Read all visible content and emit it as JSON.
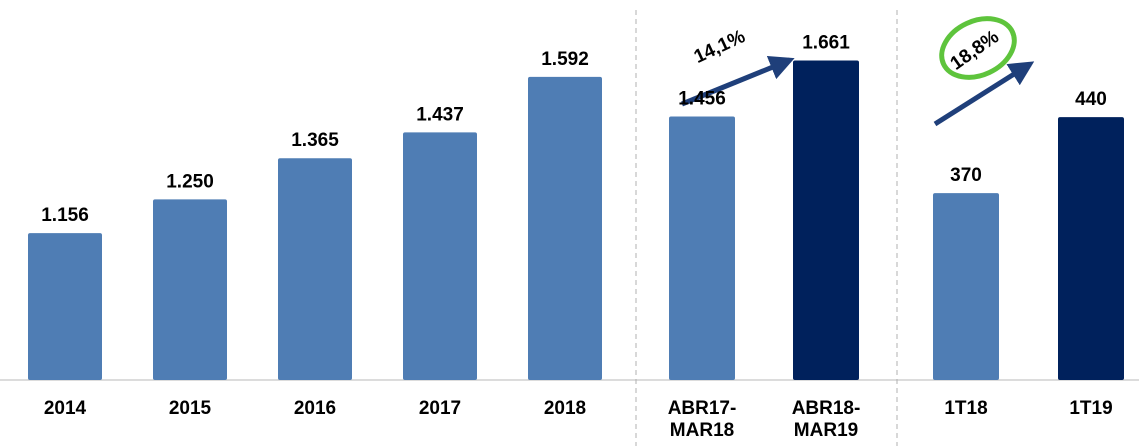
{
  "chart_data": [
    {
      "type": "bar",
      "categories": [
        "2014",
        "2015",
        "2016",
        "2017",
        "2018"
      ],
      "values": [
        1156,
        1250,
        1365,
        1437,
        1592
      ],
      "value_labels": [
        "1.156",
        "1.250",
        "1.365",
        "1.437",
        "1.592"
      ],
      "colors": [
        "#4f7db4",
        "#4f7db4",
        "#4f7db4",
        "#4f7db4",
        "#4f7db4"
      ],
      "ylim": [
        746,
        1695
      ]
    },
    {
      "type": "bar",
      "categories": [
        "ABR17-MAR18",
        "ABR18-MAR19"
      ],
      "values": [
        1456,
        1661
      ],
      "value_labels": [
        "1.456",
        "1.661"
      ],
      "colors": [
        "#4f7db4",
        "#00215c"
      ],
      "ylim": [
        491,
        1736
      ],
      "annotation": "14,1%"
    },
    {
      "type": "bar",
      "categories": [
        "1T18",
        "1T19"
      ],
      "values": [
        370,
        440
      ],
      "value_labels": [
        "370",
        "440"
      ],
      "colors": [
        "#4f7db4",
        "#00215c"
      ],
      "ylim": [
        198,
        511
      ],
      "annotation": "18,8%"
    }
  ]
}
